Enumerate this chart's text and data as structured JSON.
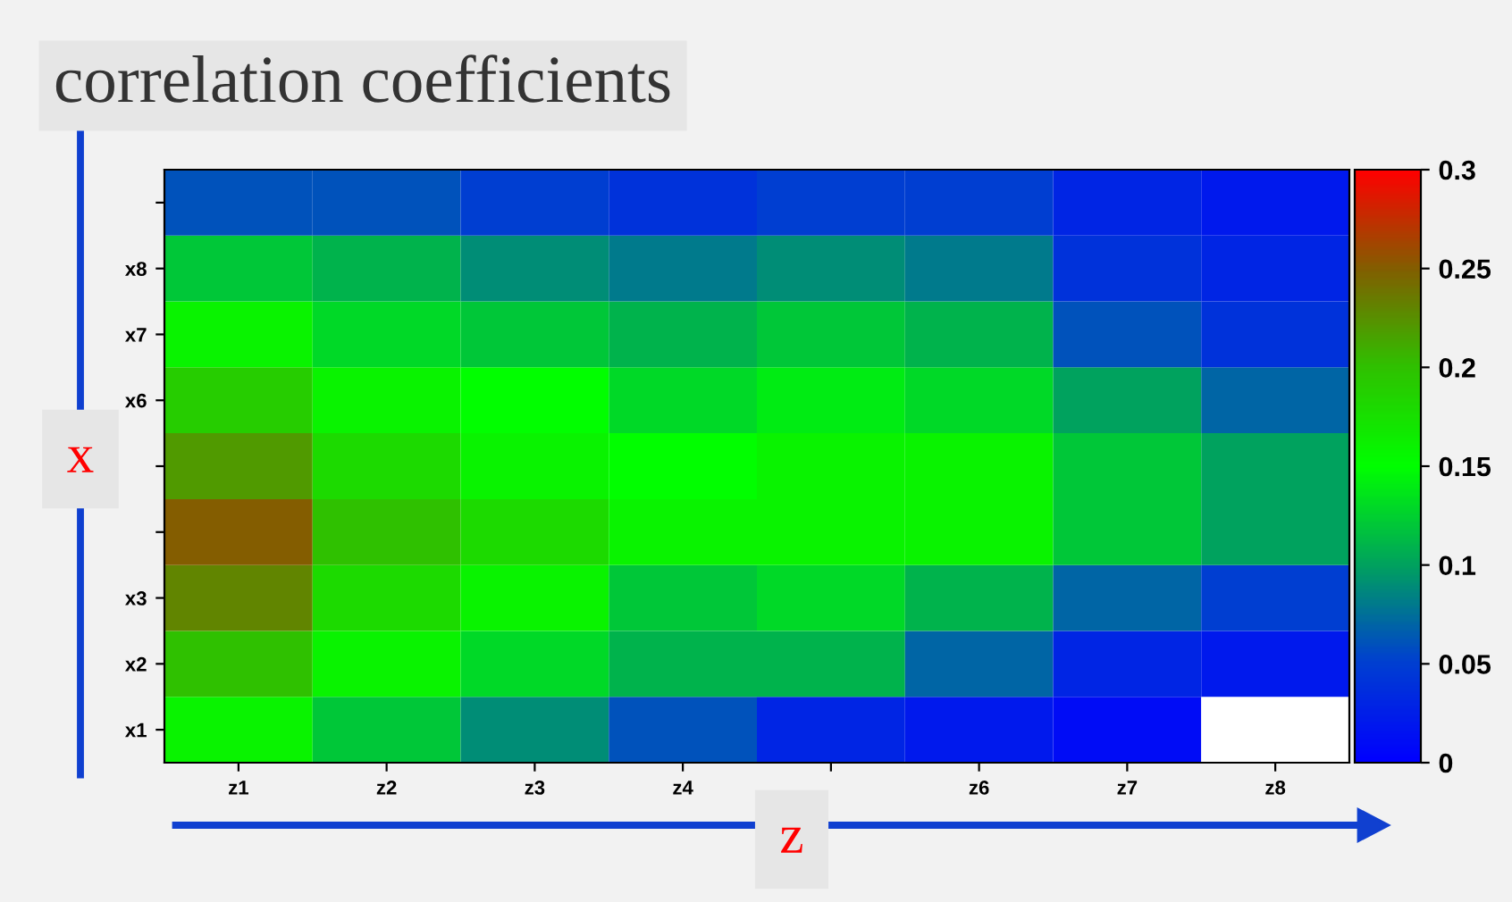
{
  "chart_data": {
    "type": "heatmap",
    "title": "correlation coefficients",
    "xlabel": "z",
    "ylabel": "x",
    "categories": [
      "z1",
      "z2",
      "z3",
      "z4",
      null,
      "z6",
      "z7",
      "z8"
    ],
    "y_categories": [
      null,
      "x8",
      "x7",
      "x6",
      null,
      null,
      "x3",
      "x2",
      "x1"
    ],
    "cells": [
      [
        0.06,
        0.06,
        0.05,
        0.04,
        0.05,
        0.05,
        0.03,
        0.02
      ],
      [
        0.12,
        0.11,
        0.09,
        0.08,
        0.09,
        0.08,
        0.04,
        0.03
      ],
      [
        0.16,
        0.13,
        0.12,
        0.11,
        0.12,
        0.11,
        0.06,
        0.04
      ],
      [
        0.19,
        0.16,
        0.15,
        0.13,
        0.14,
        0.13,
        0.1,
        0.07
      ],
      [
        0.22,
        0.18,
        0.16,
        0.15,
        0.16,
        0.16,
        0.12,
        0.1
      ],
      [
        0.25,
        0.2,
        0.18,
        0.16,
        0.16,
        0.16,
        0.12,
        0.1
      ],
      [
        0.23,
        0.18,
        0.16,
        0.12,
        0.13,
        0.11,
        0.07,
        0.05
      ],
      [
        0.2,
        0.16,
        0.13,
        0.11,
        0.11,
        0.07,
        0.03,
        0.02
      ],
      [
        0.16,
        0.12,
        0.09,
        0.06,
        0.03,
        0.02,
        0.01,
        null
      ]
    ],
    "clim": [
      0,
      0.3
    ],
    "cticks": [
      0,
      0.05,
      0.1,
      0.15,
      0.2,
      0.25,
      0.3
    ],
    "grid": false
  }
}
